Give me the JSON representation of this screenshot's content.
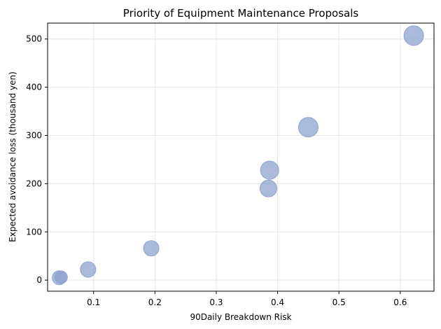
{
  "chart_data": {
    "type": "scatter",
    "title": "Priority of Equipment Maintenance Proposals",
    "xlabel": "90Daily Breakdown Risk",
    "ylabel": "Expected avoidance loss (thousand yen)",
    "xlim": [
      0.025,
      0.655
    ],
    "ylim": [
      -23,
      533
    ],
    "xticks": [
      0.1,
      0.2,
      0.3,
      0.4,
      0.5,
      0.6
    ],
    "yticks": [
      0,
      100,
      200,
      300,
      400,
      500
    ],
    "xtick_labels": [
      "0.1",
      "0.2",
      "0.3",
      "0.4",
      "0.5",
      "0.6"
    ],
    "ytick_labels": [
      "0",
      "100",
      "200",
      "300",
      "400",
      "500"
    ],
    "grid": true,
    "legend": "none",
    "point_color": "#8fa2cf",
    "series": [
      {
        "points": [
          {
            "x": 0.044,
            "y": 5,
            "size": 10
          },
          {
            "x": 0.047,
            "y": 6,
            "size": 9
          },
          {
            "x": 0.091,
            "y": 22,
            "size": 11
          },
          {
            "x": 0.194,
            "y": 66,
            "size": 11
          },
          {
            "x": 0.385,
            "y": 190,
            "size": 12
          },
          {
            "x": 0.387,
            "y": 228,
            "size": 13
          },
          {
            "x": 0.45,
            "y": 317,
            "size": 14
          },
          {
            "x": 0.622,
            "y": 507,
            "size": 14
          }
        ]
      }
    ]
  }
}
